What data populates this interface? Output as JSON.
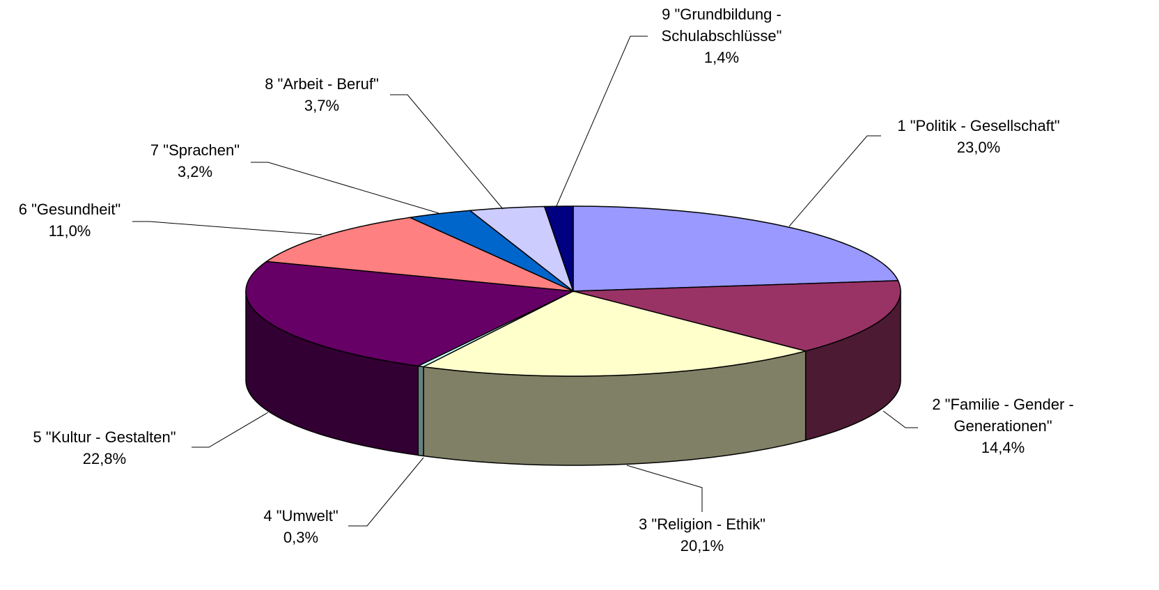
{
  "chart_data": {
    "type": "pie3d",
    "categories": [
      "1 \"Politik - Gesellschaft\"",
      "2 \"Familie - Gender - Generationen\"",
      "3 \"Religion - Ethik\"",
      "4 \"Umwelt\"",
      "5 \"Kultur - Gestalten\"",
      "6 \"Gesundheit\"",
      "7 \"Sprachen\"",
      "8 \"Arbeit - Beruf\"",
      "9 \"Grundbildung - Schulabschlüsse\""
    ],
    "values": [
      23.0,
      14.4,
      20.1,
      0.3,
      22.8,
      11.0,
      3.2,
      3.7,
      1.4
    ],
    "value_labels": [
      "23,0%",
      "14,4%",
      "20,1%",
      "0,3%",
      "22,8%",
      "11,0%",
      "3,2%",
      "3,7%",
      "1,4%"
    ],
    "colors": [
      "#9999ff",
      "#993366",
      "#ffffcc",
      "#ccffff",
      "#660066",
      "#ff8080",
      "#0066cc",
      "#ccccff",
      "#000080"
    ]
  }
}
